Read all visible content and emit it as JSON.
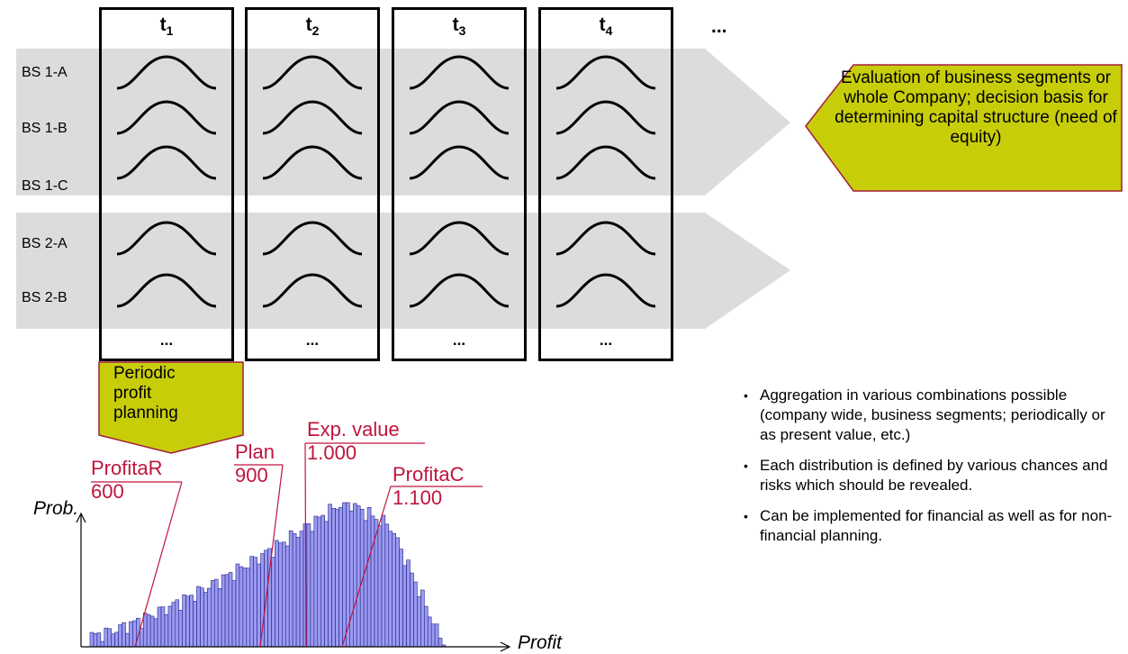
{
  "periods": [
    {
      "label": "t",
      "sub": "1",
      "dots": "..."
    },
    {
      "label": "t",
      "sub": "2",
      "dots": "..."
    },
    {
      "label": "t",
      "sub": "3",
      "dots": "..."
    },
    {
      "label": "t",
      "sub": "4",
      "dots": "..."
    }
  ],
  "more_periods": "...",
  "business_segments": [
    "BS 1-A",
    "BS 1-B",
    "BS 1-C",
    "BS 2-A",
    "BS 2-B"
  ],
  "evaluation_callout": "Evaluation of business segments or whole Company; decision basis for determining capital structure (need of equity)",
  "planning_callout": "Periodic profit planning",
  "histogram_markers": [
    {
      "name": "ProfitaR",
      "value": "600"
    },
    {
      "name": "Plan",
      "value": "900"
    },
    {
      "name": "Exp. value",
      "value": "1.000"
    },
    {
      "name": "ProfitaC",
      "value": "1.100"
    }
  ],
  "axes": {
    "y": "Prob.",
    "x": "Profit"
  },
  "bullets": [
    "Aggregation in various combinations possible (company wide, business segments; periodically or as present value, etc.)",
    "Each distribution is defined by various chances and risks which should be revealed.",
    "Can be implemented for financial as well as for non-financial planning."
  ],
  "colors": {
    "callout_fill": "#c8cd0a",
    "callout_border": "#a01e3c",
    "marker": "#c0143c",
    "bars_fill": "#9a9af0",
    "bars_stroke": "#22228a",
    "band": "#dcdcdc"
  }
}
